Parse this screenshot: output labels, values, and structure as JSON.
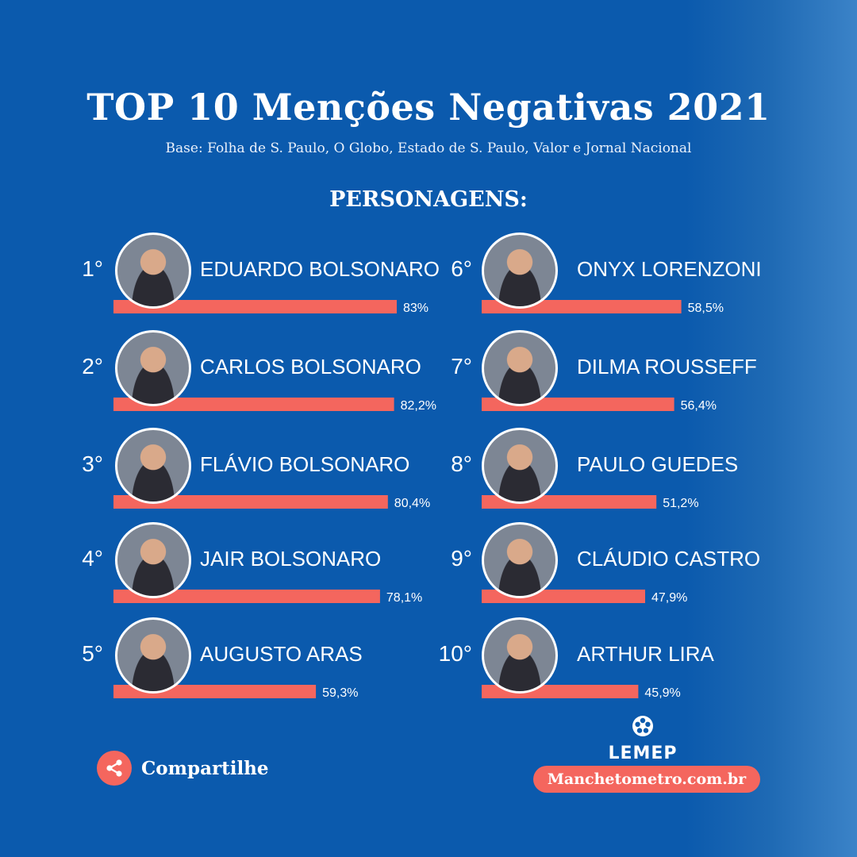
{
  "header": {
    "title": "TOP 10  Menções Negativas 2021",
    "subtitle": "Base: Folha de S. Paulo, O Globo, Estado de S. Paulo, Valor e Jornal Nacional",
    "section_label": "PERSONAGENS:"
  },
  "chart_data": {
    "type": "bar",
    "orientation": "horizontal",
    "title": "TOP 10  Menções Negativas 2021",
    "subtitle": "Base: Folha de S. Paulo, O Globo, Estado de S. Paulo, Valor e Jornal Nacional",
    "items": [
      {
        "rank": "1°",
        "name": "EDUARDO BOLSONARO",
        "value": 83.0,
        "label": "83%"
      },
      {
        "rank": "2°",
        "name": "CARLOS BOLSONARO",
        "value": 82.2,
        "label": "82,2%"
      },
      {
        "rank": "3°",
        "name": "FLÁVIO BOLSONARO",
        "value": 80.4,
        "label": "80,4%"
      },
      {
        "rank": "4°",
        "name": "JAIR BOLSONARO",
        "value": 78.1,
        "label": "78,1%"
      },
      {
        "rank": "5°",
        "name": "AUGUSTO ARAS",
        "value": 59.3,
        "label": "59,3%"
      },
      {
        "rank": "6°",
        "name": "ONYX LORENZONI",
        "value": 58.5,
        "label": "58,5%"
      },
      {
        "rank": "7°",
        "name": "DILMA ROUSSEFF",
        "value": 56.4,
        "label": "56,4%"
      },
      {
        "rank": "8°",
        "name": "PAULO GUEDES",
        "value": 51.2,
        "label": "51,2%"
      },
      {
        "rank": "9°",
        "name": "CLÁUDIO CASTRO",
        "value": 47.9,
        "label": "47,9%"
      },
      {
        "rank": "10°",
        "name": "ARTHUR LIRA",
        "value": 45.9,
        "label": "45,9%"
      }
    ],
    "bar_color": "#f4665e",
    "background_color": "#0b5aad",
    "grid": false,
    "legend": "none"
  },
  "footer": {
    "share_label": "Compartilhe",
    "share_icon": "share-icon",
    "logo_text": "LEMEP",
    "site": "Manchetometro.com.br"
  },
  "colors": {
    "accent": "#f4665e",
    "background": "#0b5aad",
    "text": "#ffffff"
  }
}
